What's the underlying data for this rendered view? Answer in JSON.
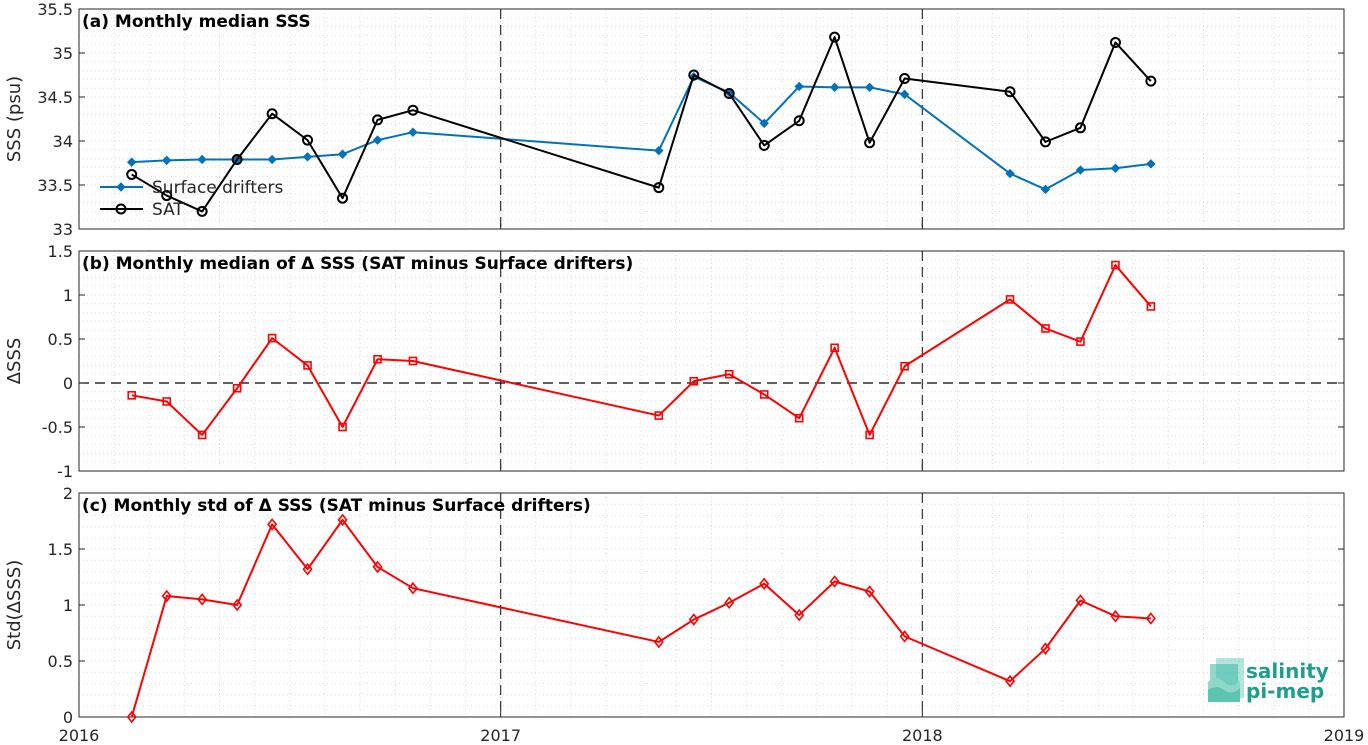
{
  "colors": {
    "surface_drifters": "#0072BD",
    "sat": "#000000",
    "delta": "#FF0000"
  },
  "logo": {
    "line1": "salinity",
    "line2": "pi-mep",
    "icon": "salinity-pi-mep-logo-icon"
  },
  "chart_data": [
    {
      "type": "line",
      "title": "(a) Monthly median SSS",
      "ylabel": "SSS (psu)",
      "ylim": [
        33,
        35.5
      ],
      "xlim": [
        2016,
        2019
      ],
      "yticks": [
        "33",
        "33.5",
        "34",
        "34.5",
        "35",
        "35.5"
      ],
      "grid": true,
      "legend": {
        "placement": "left",
        "entries": [
          "Surface drifters",
          "SAT"
        ]
      },
      "series": [
        {
          "name": "Surface drifters",
          "marker": "diamond",
          "x": [
            2016.125,
            2016.208,
            2016.292,
            2016.375,
            2016.458,
            2016.542,
            2016.625,
            2016.708,
            2016.792,
            2017.375,
            2017.458,
            2017.542,
            2017.625,
            2017.708,
            2017.792,
            2017.875,
            2017.958,
            2018.208,
            2018.292,
            2018.375,
            2018.458,
            2018.542
          ],
          "values": [
            33.76,
            33.78,
            33.79,
            33.79,
            33.79,
            33.82,
            33.85,
            34.01,
            34.1,
            33.89,
            34.73,
            34.55,
            34.2,
            34.62,
            34.61,
            34.61,
            34.53,
            33.63,
            33.45,
            33.67,
            33.69,
            33.74
          ]
        },
        {
          "name": "SAT",
          "marker": "circle",
          "x": [
            2016.125,
            2016.208,
            2016.292,
            2016.375,
            2016.458,
            2016.542,
            2016.625,
            2016.708,
            2016.792,
            2017.375,
            2017.458,
            2017.542,
            2017.625,
            2017.708,
            2017.792,
            2017.875,
            2017.958,
            2018.208,
            2018.292,
            2018.375,
            2018.458,
            2018.542
          ],
          "values": [
            33.62,
            33.38,
            33.2,
            33.79,
            34.31,
            34.01,
            33.35,
            34.24,
            34.35,
            33.47,
            34.75,
            34.54,
            33.95,
            34.23,
            35.18,
            33.98,
            34.71,
            34.56,
            33.99,
            34.15,
            35.12,
            34.68
          ]
        }
      ]
    },
    {
      "type": "line",
      "title": "(b) Monthly median of Δ SSS (SAT minus Surface drifters)",
      "ylabel": "ΔSSS",
      "ylim": [
        -1,
        1.5
      ],
      "xlim": [
        2016,
        2019
      ],
      "yticks": [
        "-1",
        "-0.5",
        "0",
        "0.5",
        "1",
        "1.5"
      ],
      "grid": true,
      "zero_line": true,
      "series": [
        {
          "marker": "square",
          "x": [
            2016.125,
            2016.208,
            2016.292,
            2016.375,
            2016.458,
            2016.542,
            2016.625,
            2016.708,
            2016.792,
            2017.375,
            2017.458,
            2017.542,
            2017.625,
            2017.708,
            2017.792,
            2017.875,
            2017.958,
            2018.208,
            2018.292,
            2018.375,
            2018.458,
            2018.542
          ],
          "values": [
            -0.14,
            -0.21,
            -0.59,
            -0.06,
            0.51,
            0.2,
            -0.5,
            0.27,
            0.25,
            -0.37,
            0.02,
            0.1,
            -0.13,
            -0.4,
            0.4,
            -0.59,
            0.19,
            0.95,
            0.62,
            0.47,
            1.34,
            0.87
          ]
        }
      ]
    },
    {
      "type": "line",
      "title": "(c) Monthly std of Δ SSS (SAT minus Surface drifters)",
      "ylabel": "Std(ΔSSS)",
      "ylim": [
        0,
        2
      ],
      "xlim": [
        2016,
        2019
      ],
      "yticks": [
        "0",
        "0.5",
        "1",
        "1.5",
        "2"
      ],
      "xticks": [
        "2016",
        "2017",
        "2018",
        "2019"
      ],
      "grid": true,
      "series": [
        {
          "marker": "diamond",
          "x": [
            2016.125,
            2016.208,
            2016.292,
            2016.375,
            2016.458,
            2016.542,
            2016.625,
            2016.708,
            2016.792,
            2017.375,
            2017.458,
            2017.542,
            2017.625,
            2017.708,
            2017.792,
            2017.875,
            2017.958,
            2018.208,
            2018.292,
            2018.375,
            2018.458,
            2018.542
          ],
          "values": [
            0.0,
            1.08,
            1.05,
            1.0,
            1.72,
            1.32,
            1.76,
            1.34,
            1.15,
            0.67,
            0.87,
            1.02,
            1.19,
            0.91,
            1.21,
            1.12,
            0.72,
            0.32,
            0.61,
            1.04,
            0.9,
            0.88
          ]
        }
      ]
    }
  ]
}
